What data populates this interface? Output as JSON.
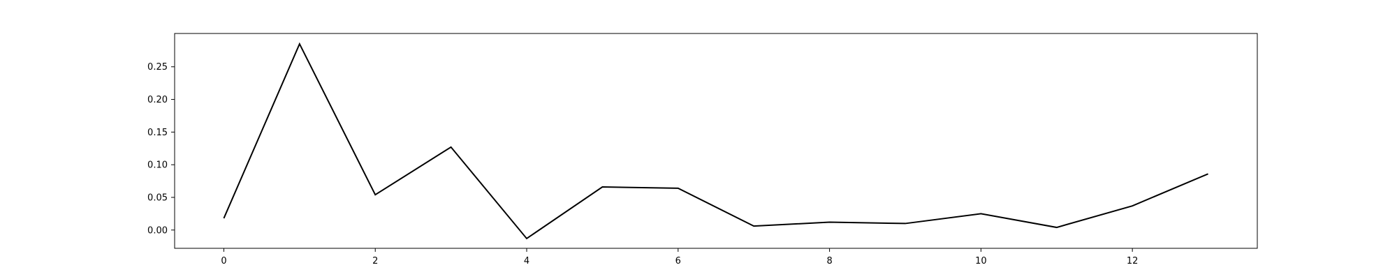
{
  "chart_data": {
    "type": "line",
    "title": "",
    "xlabel": "",
    "ylabel": "",
    "x": [
      0,
      1,
      2,
      3,
      4,
      5,
      6,
      7,
      8,
      9,
      10,
      11,
      12,
      13
    ],
    "series": [
      {
        "values": [
          0.018,
          0.285,
          0.054,
          0.127,
          -0.013,
          0.066,
          0.064,
          0.006,
          0.012,
          0.01,
          0.025,
          0.004,
          0.037,
          0.086
        ],
        "color": "#000000"
      }
    ],
    "xlim": [
      -0.65,
      13.65
    ],
    "ylim": [
      -0.028,
      0.301
    ],
    "xticks": [
      0,
      2,
      4,
      6,
      8,
      10,
      12
    ],
    "xtick_labels": [
      "0",
      "2",
      "4",
      "6",
      "8",
      "10",
      "12"
    ],
    "yticks": [
      0.0,
      0.05,
      0.1,
      0.15,
      0.2,
      0.25
    ],
    "ytick_labels": [
      "0.00",
      "0.05",
      "0.10",
      "0.15",
      "0.20",
      "0.25"
    ],
    "grid": false,
    "legend": "none"
  }
}
